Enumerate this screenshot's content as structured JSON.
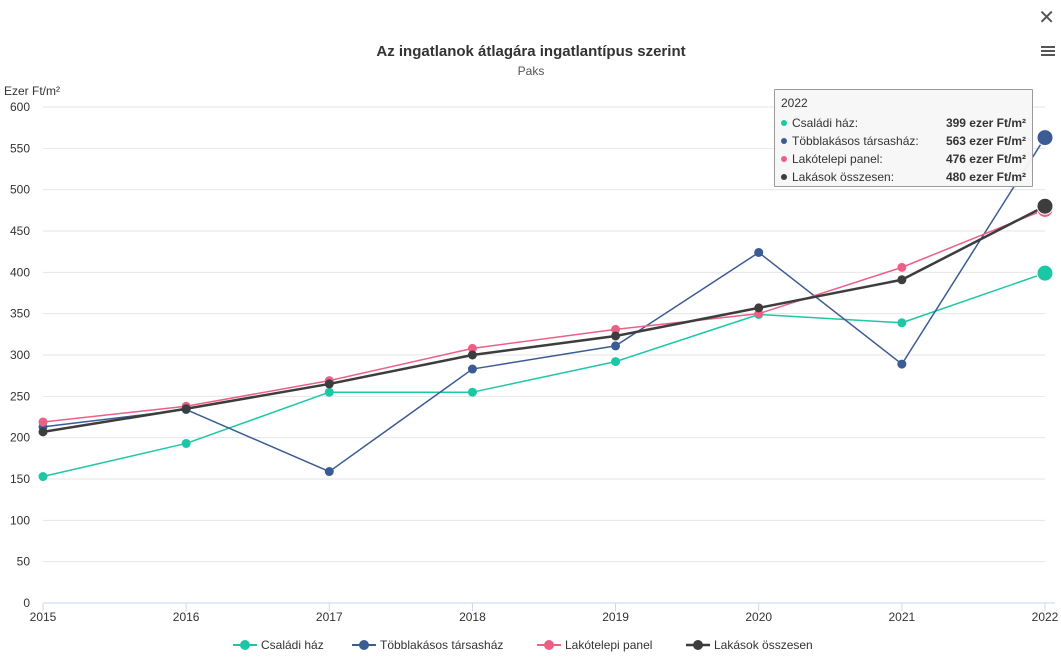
{
  "chart_data": {
    "type": "line",
    "title": "Az ingatlanok átlagára ingatlantípus szerint",
    "subtitle": "Paks",
    "ylabel": "Ezer Ft/m²",
    "xlabel": "",
    "ylim": [
      0,
      600
    ],
    "yticks": [
      "0",
      "50",
      "100",
      "150",
      "200",
      "250",
      "300",
      "350",
      "400",
      "450",
      "500",
      "550",
      "600"
    ],
    "categories": [
      "2015",
      "2016",
      "2017",
      "2018",
      "2019",
      "2020",
      "2021",
      "2022"
    ],
    "grid": true,
    "legend_position": "bottom",
    "series": [
      {
        "name": "Családi ház",
        "color": "#1cc7a6",
        "values": [
          153,
          193,
          255,
          255,
          292,
          349,
          339,
          399
        ]
      },
      {
        "name": "Többlakásos társasház",
        "color": "#3b5b95",
        "values": [
          213,
          234,
          159,
          283,
          311,
          424,
          289,
          563
        ]
      },
      {
        "name": "Lakótelepi panel",
        "color": "#ec5f87",
        "values": [
          219,
          238,
          269,
          308,
          331,
          350,
          406,
          476
        ]
      },
      {
        "name": "Lakások összesen",
        "color": "#3d3d3d",
        "values": [
          207,
          235,
          265,
          300,
          323,
          357,
          391,
          480
        ]
      }
    ]
  },
  "tooltip": {
    "title": "2022",
    "rows": [
      {
        "label": "Családi ház:",
        "value": "399 ezer Ft/m²",
        "color": "#1cc7a6"
      },
      {
        "label": "Többlakásos társasház:",
        "value": "563 ezer Ft/m²",
        "color": "#3b5b95"
      },
      {
        "label": "Lakótelepi panel:",
        "value": "476 ezer Ft/m²",
        "color": "#ec5f87"
      },
      {
        "label": "Lakások összesen:",
        "value": "480 ezer Ft/m²",
        "color": "#3d3d3d"
      }
    ]
  },
  "controls": {
    "close_icon": "close-icon",
    "menu_icon": "hamburger-menu-icon",
    "close_glyph": "✕"
  }
}
